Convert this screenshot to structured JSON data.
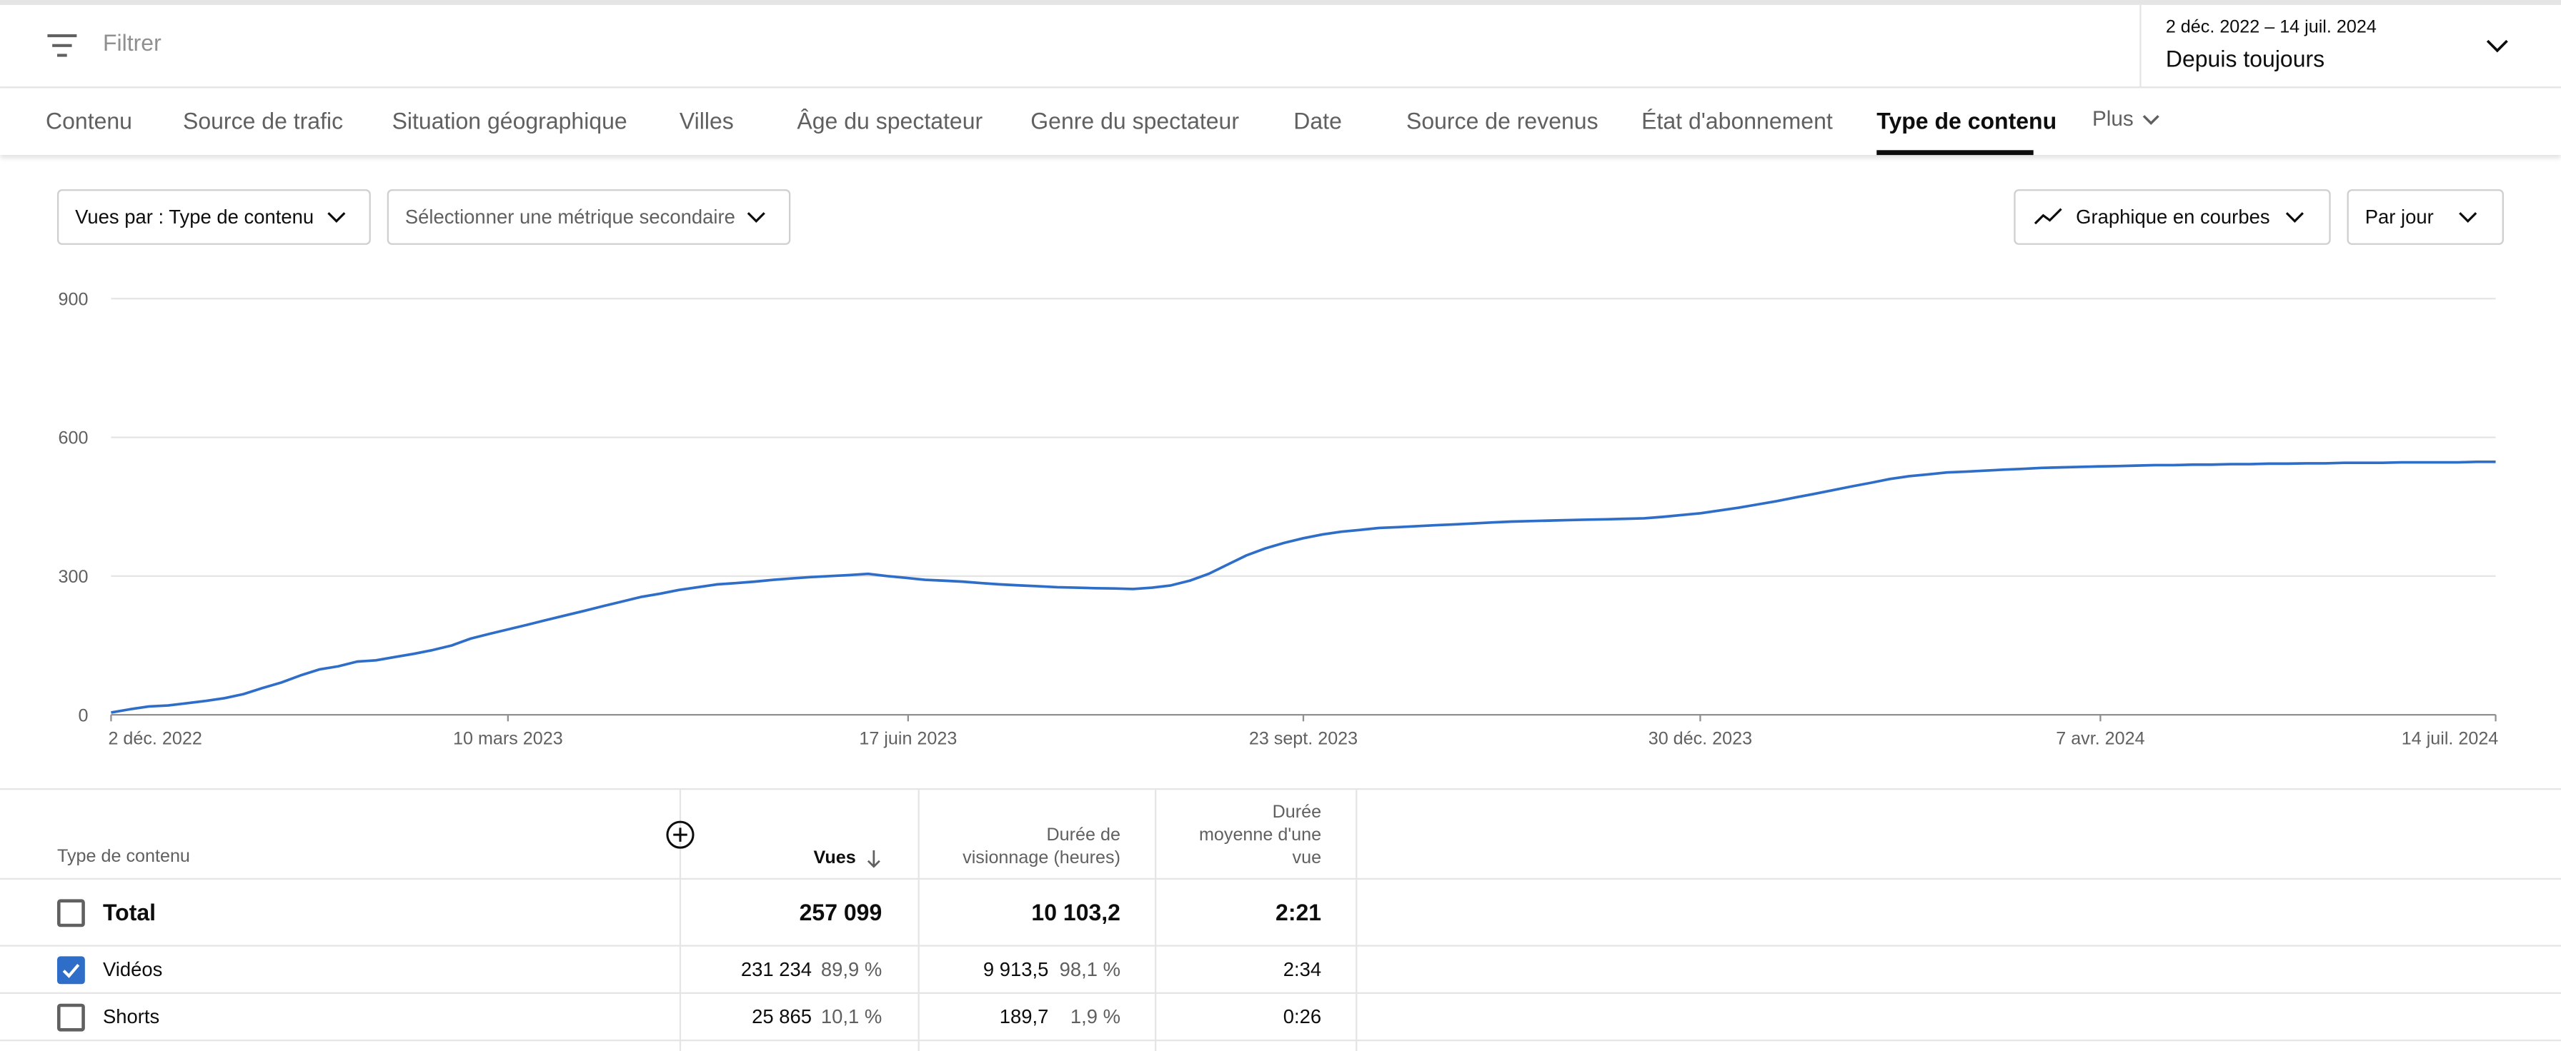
{
  "filter": {
    "placeholder": "Filtrer",
    "icon": "filter-icon"
  },
  "date_range": {
    "dates": "2 déc. 2022 – 14 juil. 2024",
    "label": "Depuis toujours"
  },
  "tabs": [
    {
      "label": "Contenu"
    },
    {
      "label": "Source de trafic"
    },
    {
      "label": "Situation géographique"
    },
    {
      "label": "Villes"
    },
    {
      "label": "Âge du spectateur"
    },
    {
      "label": "Genre du spectateur"
    },
    {
      "label": "Date"
    },
    {
      "label": "Source de revenus"
    },
    {
      "label": "État d'abonnement"
    },
    {
      "label": "Type de contenu",
      "active": true
    }
  ],
  "tab_more": "Plus",
  "controls": {
    "metric_primary": "Vues par : Type de contenu",
    "metric_secondary": "Sélectionner une métrique secondaire",
    "chart_type": "Graphique en courbes",
    "granularity": "Par jour"
  },
  "chart_data": {
    "type": "line",
    "ylim": [
      0,
      900
    ],
    "yticks": [
      "0",
      "300",
      "600",
      "900"
    ],
    "xticks": [
      "2 déc. 2022",
      "10 mars 2023",
      "17 juin 2023",
      "23 sept. 2023",
      "30 déc. 2023",
      "7 avr. 2024",
      "14 juil. 2024"
    ],
    "grid": true,
    "series_color": "#2f6ec8",
    "x_start": "2022-12-02",
    "x_end": "2024-07-14",
    "step_days": 5,
    "series": [
      {
        "values": [
          5,
          12,
          18,
          20,
          25,
          30,
          36,
          45,
          58,
          70,
          85,
          98,
          105,
          115,
          118,
          125,
          132,
          140,
          150,
          165,
          175,
          185,
          195,
          205,
          215,
          225,
          235,
          245,
          255,
          262,
          270,
          276,
          282,
          285,
          288,
          292,
          295,
          298,
          300,
          302,
          305,
          300,
          296,
          292,
          290,
          288,
          285,
          282,
          280,
          278,
          276,
          275,
          274,
          273,
          272,
          275,
          280,
          290,
          305,
          325,
          345,
          360,
          372,
          382,
          390,
          396,
          400,
          404,
          406,
          408,
          410,
          412,
          414,
          416,
          418,
          419,
          420,
          421,
          422,
          423,
          424,
          425,
          428,
          432,
          436,
          442,
          448,
          455,
          462,
          470,
          478,
          486,
          494,
          502,
          510,
          516,
          520,
          524,
          526,
          528,
          530,
          532,
          534,
          535,
          536,
          537,
          538,
          539,
          540,
          540,
          541,
          541,
          542,
          542,
          543,
          543,
          544,
          544,
          545,
          545,
          545,
          546,
          546,
          546,
          546,
          547,
          547
        ]
      }
    ]
  },
  "table": {
    "headers": {
      "dimension": "Type de contenu",
      "views": "Vues",
      "watch_time": [
        "Durée de",
        "visionnage (heures)"
      ],
      "avg_duration": [
        "Durée",
        "moyenne d'une",
        "vue"
      ]
    },
    "total": {
      "label": "Total",
      "views": "257 099",
      "watch_time": "10 103,2",
      "avg_duration": "2:21"
    },
    "rows": [
      {
        "label": "Vidéos",
        "checked": true,
        "views": "231 234",
        "views_pct": "89,9 %",
        "watch_time": "9 913,5",
        "watch_time_pct": "98,1 %",
        "avg_duration": "2:34"
      },
      {
        "label": "Shorts",
        "checked": false,
        "views": "25 865",
        "views_pct": "10,1 %",
        "watch_time": "189,7",
        "watch_time_pct": "1,9 %",
        "avg_duration": "0:26"
      }
    ]
  }
}
